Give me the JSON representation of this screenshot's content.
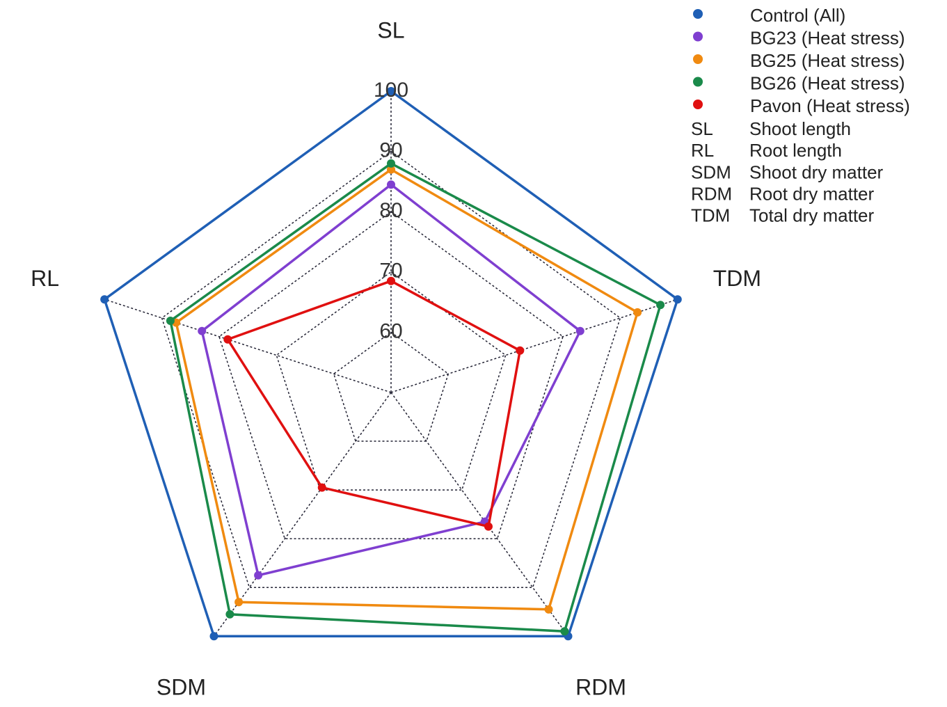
{
  "chart_data": {
    "type": "radar",
    "categories": [
      "SL",
      "TDM",
      "RDM",
      "SDM",
      "RL"
    ],
    "rlim": [
      50,
      100
    ],
    "rticks": [
      60,
      70,
      80,
      90,
      100
    ],
    "grid": true,
    "series": [
      {
        "name": "Control (All)",
        "color": "#1f5fb5",
        "values": [
          100,
          100,
          100,
          100,
          100
        ]
      },
      {
        "name": "BG23 (Heat stress)",
        "color": "#7f3fd0",
        "values": [
          84.5,
          83,
          76.5,
          87.5,
          83
        ]
      },
      {
        "name": "BG25 (Heat stress)",
        "color": "#f08a10",
        "values": [
          87,
          93,
          94.5,
          93,
          87.5
        ]
      },
      {
        "name": "BG26 (Heat stress)",
        "color": "#1a8a4a",
        "values": [
          88,
          97,
          99,
          95.5,
          88.5
        ]
      },
      {
        "name": "Pavon (Heat stress)",
        "color": "#e01010",
        "values": [
          68.5,
          72.5,
          77.5,
          69.5,
          78.5
        ]
      }
    ],
    "abbreviations": [
      {
        "code": "SL",
        "label": "Shoot length"
      },
      {
        "code": "RL",
        "label": "Root length"
      },
      {
        "code": "SDM",
        "label": "Shoot dry matter"
      },
      {
        "code": "RDM",
        "label": "Root dry matter"
      },
      {
        "code": "TDM",
        "label": "Total dry matter"
      }
    ]
  }
}
